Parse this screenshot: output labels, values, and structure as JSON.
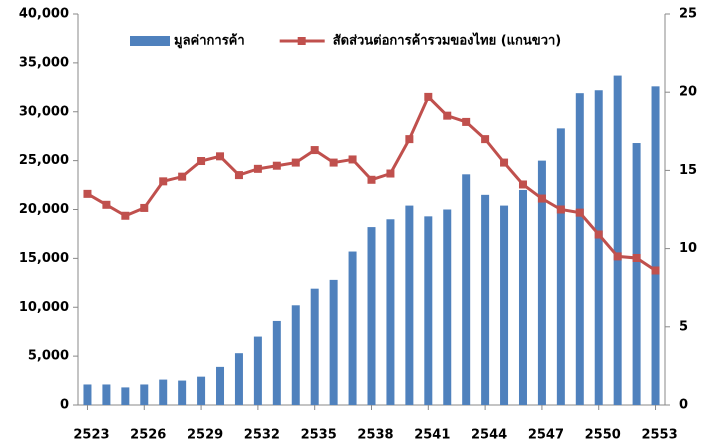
{
  "chart_data": {
    "type": "bar_line",
    "categories": [
      "2523",
      null,
      null,
      "2526",
      null,
      null,
      "2529",
      null,
      null,
      "2532",
      null,
      null,
      "2535",
      null,
      null,
      "2538",
      null,
      null,
      "2541",
      null,
      null,
      "2544",
      null,
      null,
      "2547",
      null,
      null,
      "2550",
      null,
      null,
      "2553"
    ],
    "series": [
      {
        "name": "มูลค่าการค้า",
        "type": "bar",
        "color": "#4f81bd",
        "axis": "y",
        "values": [
          2100,
          2100,
          1800,
          2100,
          2600,
          2500,
          2900,
          3900,
          5300,
          7000,
          8600,
          10200,
          11900,
          12800,
          15700,
          18200,
          19000,
          20400,
          19300,
          20000,
          23600,
          21500,
          20400,
          22000,
          25000,
          28300,
          31900,
          32200,
          33700,
          26800,
          32600
        ]
      },
      {
        "name": "สัดส่วนต่อการค้ารวมของไทย (แกนขวา)",
        "type": "line",
        "color": "#c0504d",
        "axis": "y2",
        "values": [
          13.5,
          12.8,
          12.1,
          12.6,
          14.3,
          14.6,
          15.6,
          15.9,
          14.7,
          15.1,
          15.3,
          15.5,
          16.3,
          15.5,
          15.7,
          14.4,
          14.8,
          17.0,
          19.7,
          18.5,
          18.1,
          17.0,
          15.5,
          14.1,
          13.2,
          12.5,
          12.3,
          10.9,
          9.5,
          9.4,
          8.6
        ]
      }
    ],
    "ylim": [
      0,
      40000
    ],
    "yticks": [
      0,
      {
        "value": 5000,
        "label": "5,000"
      },
      {
        "value": 10000,
        "label": "10,000"
      },
      {
        "value": 15000,
        "label": "15,000"
      },
      {
        "value": 20000,
        "label": "20,000"
      },
      {
        "value": 25000,
        "label": "25,000"
      },
      {
        "value": 30000,
        "label": "30,000"
      },
      {
        "value": 35000,
        "label": "35,000"
      },
      {
        "value": 40000,
        "label": "40,000"
      }
    ],
    "y2lim": [
      0,
      25
    ],
    "y2ticks": [
      0,
      5,
      10,
      15,
      20,
      25
    ],
    "grid": false,
    "legend": "top"
  }
}
